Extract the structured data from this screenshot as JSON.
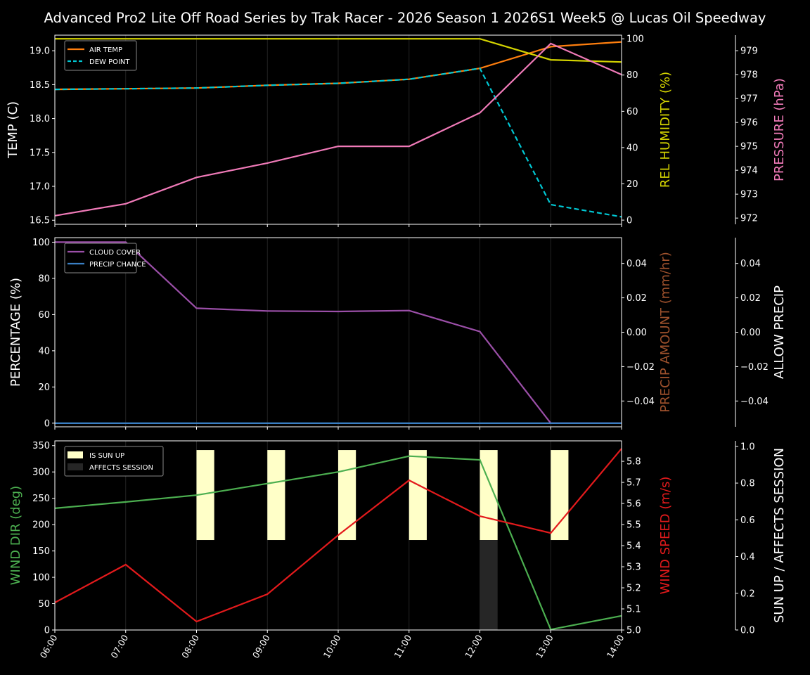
{
  "title": "Advanced Pro2 Lite Off Road Series by Trak Racer - 2026 Season 1 2026S1 Week5 @ Lucas Oil Speedway",
  "x_tick_labels": [
    "06:00",
    "07:00",
    "08:00",
    "09:00",
    "10:00",
    "11:00",
    "12:00",
    "13:00",
    "14:00"
  ],
  "chart_data": [
    {
      "type": "line",
      "x": [
        6,
        7,
        8,
        9,
        10,
        11,
        12,
        13,
        14
      ],
      "axes": [
        {
          "side": "left",
          "label": "TEMP (C)",
          "color": "#ffffff",
          "ylim": [
            16.44,
            19.23
          ],
          "ticks": [
            16.5,
            17.0,
            17.5,
            18.0,
            18.5,
            19.0
          ],
          "tick_labels": [
            "16.5",
            "17.0",
            "17.5",
            "18.0",
            "18.5",
            "19.0"
          ]
        },
        {
          "side": "right",
          "label": "REL HUMIDITY (%)",
          "color": "#d4d400",
          "ylim": [
            -2.3,
            102
          ],
          "ticks": [
            0,
            20,
            40,
            60,
            80,
            100
          ],
          "tick_labels": [
            "0",
            "20",
            "40",
            "60",
            "80",
            "100"
          ]
        },
        {
          "side": "far-right",
          "label": "PRESSURE (hPa)",
          "color": "#f07ab8",
          "ylim": [
            971.74,
            979.65
          ],
          "ticks": [
            972,
            973,
            974,
            975,
            976,
            977,
            978,
            979
          ],
          "tick_labels": [
            "972",
            "973",
            "974",
            "975",
            "976",
            "977",
            "978",
            "979"
          ]
        }
      ],
      "series": [
        {
          "name": "AIR TEMP",
          "axis": 0,
          "color": "#ff7f0e",
          "dash": false,
          "legend": true,
          "values": [
            18.43,
            18.44,
            18.45,
            18.49,
            18.52,
            18.58,
            18.74,
            19.06,
            19.13
          ]
        },
        {
          "name": "DEW POINT",
          "axis": 0,
          "color": "#00c8d4",
          "dash": true,
          "legend": true,
          "values": [
            18.43,
            18.44,
            18.45,
            18.49,
            18.52,
            18.58,
            18.74,
            16.73,
            16.55
          ]
        },
        {
          "name": "REL HUMIDITY",
          "axis": 1,
          "color": "#d4d400",
          "dash": false,
          "legend": false,
          "values": [
            100,
            100,
            100,
            100,
            100,
            100,
            100,
            88.4,
            87.2
          ]
        },
        {
          "name": "PRESSURE",
          "axis": 2,
          "color": "#f07ab8",
          "dash": false,
          "legend": false,
          "values": [
            972.1,
            972.6,
            973.7,
            974.3,
            975.0,
            975.0,
            976.4,
            979.3,
            978.0
          ]
        }
      ]
    },
    {
      "type": "line",
      "x": [
        6,
        7,
        8,
        9,
        10,
        11,
        12,
        13,
        14
      ],
      "axes": [
        {
          "side": "left",
          "label": "PERCENTAGE (%)",
          "color": "#ffffff",
          "ylim": [
            -2,
            102.5
          ],
          "ticks": [
            0,
            20,
            40,
            60,
            80,
            100
          ],
          "tick_labels": [
            "0",
            "20",
            "40",
            "60",
            "80",
            "100"
          ]
        },
        {
          "side": "right",
          "label": "PRECIP AMOUNT (mm/hr)",
          "color": "#a0522d",
          "ylim": [
            -0.055,
            0.055
          ],
          "ticks": [
            -0.04,
            -0.02,
            0,
            0.02,
            0.04
          ],
          "tick_labels": [
            "−0.04",
            "−0.02",
            "0.00",
            "0.02",
            "0.04"
          ]
        },
        {
          "side": "far-right",
          "label": "ALLOW PRECIP",
          "color": "#ffffff",
          "ylim": [
            -0.055,
            0.055
          ],
          "ticks": [
            -0.04,
            -0.02,
            0,
            0.02,
            0.04
          ],
          "tick_labels": [
            "−0.04",
            "−0.02",
            "0.00",
            "0.02",
            "0.04"
          ]
        }
      ],
      "series": [
        {
          "name": "CLOUD COVER",
          "axis": 0,
          "color": "#9b4fa8",
          "dash": false,
          "legend": true,
          "values": [
            100,
            100,
            63.5,
            62,
            61.7,
            62.2,
            50.6,
            0,
            0
          ]
        },
        {
          "name": "PRECIP CHANCE",
          "axis": 0,
          "color": "#3a7fc4",
          "dash": false,
          "legend": true,
          "values": [
            0,
            0,
            0,
            0,
            0,
            0,
            0,
            0,
            0
          ]
        }
      ]
    },
    {
      "type": "line",
      "x": [
        6,
        7,
        8,
        9,
        10,
        11,
        12,
        13,
        14
      ],
      "axes": [
        {
          "side": "left",
          "label": "WIND DIR (deg)",
          "color": "#4caf50",
          "ylim": [
            0,
            359
          ],
          "ticks": [
            0,
            50,
            100,
            150,
            200,
            250,
            300,
            350
          ],
          "tick_labels": [
            "0",
            "50",
            "100",
            "150",
            "200",
            "250",
            "300",
            "350"
          ]
        },
        {
          "side": "right",
          "label": "WIND SPEED (m/s)",
          "color": "#e31a1c",
          "ylim": [
            5.0,
            5.897
          ],
          "ticks": [
            5.0,
            5.1,
            5.2,
            5.3,
            5.4,
            5.5,
            5.6,
            5.7,
            5.8
          ],
          "tick_labels": [
            "5.0",
            "5.1",
            "5.2",
            "5.3",
            "5.4",
            "5.5",
            "5.6",
            "5.7",
            "5.8"
          ]
        },
        {
          "side": "far-right",
          "label": "SUN UP / AFFECTS SESSION",
          "color": "#ffffff",
          "ylim": [
            0,
            1.03
          ],
          "ticks": [
            0,
            0.2,
            0.4,
            0.6,
            0.8,
            1.0
          ],
          "tick_labels": [
            "0.0",
            "0.2",
            "0.4",
            "0.6",
            "0.8",
            "1.0"
          ]
        }
      ],
      "bars": [
        {
          "name": "IS SUN UP",
          "color": "#ffffc8",
          "range": [
            0.49,
            0.98
          ],
          "values": [
            0,
            0,
            1,
            1,
            1,
            1,
            1,
            1,
            0
          ]
        },
        {
          "name": "AFFECTS SESSION",
          "color": "#262626",
          "range": [
            0,
            0.49
          ],
          "values": [
            0,
            0,
            0,
            0,
            0,
            0,
            1,
            0,
            0
          ]
        }
      ],
      "series": [
        {
          "name": "WIND DIR",
          "axis": 0,
          "color": "#4caf50",
          "dash": false,
          "legend": false,
          "values": [
            231,
            243,
            256,
            278,
            300,
            330,
            323,
            1,
            27
          ]
        },
        {
          "name": "WIND SPEED",
          "axis": 1,
          "color": "#e31a1c",
          "dash": false,
          "legend": false,
          "values": [
            5.13,
            5.31,
            5.04,
            5.17,
            5.45,
            5.71,
            5.54,
            5.46,
            5.86
          ]
        }
      ]
    }
  ]
}
